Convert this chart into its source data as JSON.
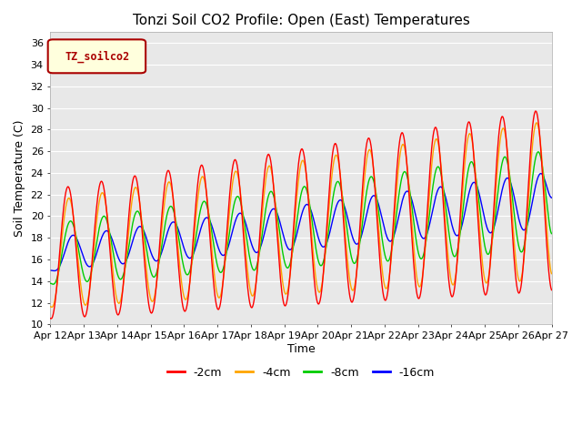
{
  "title": "Tonzi Soil CO2 Profile: Open (East) Temperatures",
  "xlabel": "Time",
  "ylabel": "Soil Temperature (C)",
  "ylim": [
    10,
    37
  ],
  "yticks": [
    10,
    12,
    14,
    16,
    18,
    20,
    22,
    24,
    26,
    28,
    30,
    32,
    34,
    36
  ],
  "legend_label": "TZ_soilco2",
  "series_labels": [
    "-2cm",
    "-4cm",
    "-8cm",
    "-16cm"
  ],
  "series_colors": [
    "#ff0000",
    "#ffa500",
    "#00cc00",
    "#0000ff"
  ],
  "background_color": "#ffffff",
  "plot_bg_color": "#e8e8e8",
  "grid_color": "#ffffff",
  "x_tick_labels": [
    "Apr 12",
    "Apr 13",
    "Apr 14",
    "Apr 15",
    "Apr 16",
    "Apr 17",
    "Apr 18",
    "Apr 19",
    "Apr 20",
    "Apr 21",
    "Apr 22",
    "Apr 23",
    "Apr 24",
    "Apr 25",
    "Apr 26",
    "Apr 27"
  ],
  "title_fontsize": 11,
  "axis_label_fontsize": 9,
  "tick_fontsize": 8,
  "legend_fontsize": 9
}
